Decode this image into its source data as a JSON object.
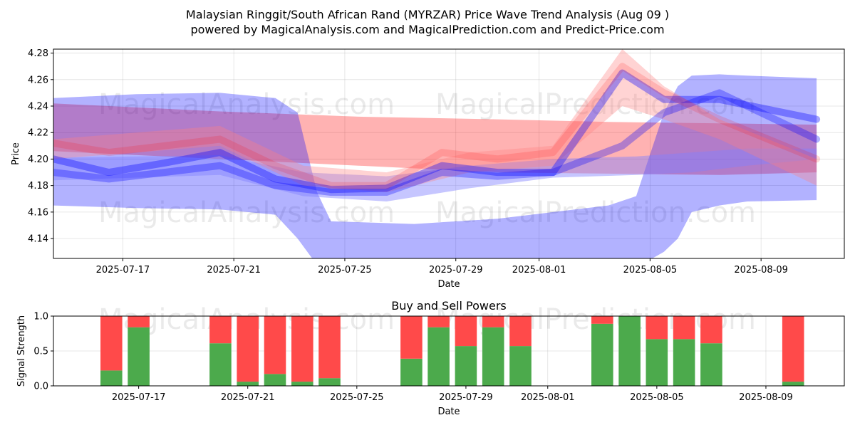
{
  "chart_data": [
    {
      "type": "area",
      "title_line1": "Malaysian Ringgit/South African Rand (MYRZAR) Price Wave Trend Analysis (Aug 09 )",
      "title_line2": "powered by MagicalAnalysis.com and MagicalPrediction.com and Predict-Price.com",
      "xlabel": "Date",
      "ylabel": "Price",
      "x_range": [
        "2025-07-14T12:00",
        "2025-08-12T00:00"
      ],
      "ylim": [
        4.125,
        4.283
      ],
      "y_ticks": [
        4.14,
        4.16,
        4.18,
        4.2,
        4.22,
        4.24,
        4.26,
        4.28
      ],
      "y_tick_labels": [
        "4.14",
        "4.16",
        "4.18",
        "4.20",
        "4.22",
        "4.24",
        "4.26",
        "4.28"
      ],
      "x_ticks": [
        "2025-07-17",
        "2025-07-21",
        "2025-07-25",
        "2025-07-29",
        "2025-08-01",
        "2025-08-05",
        "2025-08-09"
      ],
      "grid": true,
      "watermark": [
        "MagicalAnalysis.com",
        "MagicalPrediction.com"
      ],
      "bands": [
        {
          "color": "#ff0000",
          "opacity": 0.3,
          "days": [
            0,
            6,
            11,
            16,
            20,
            24,
            27.5
          ],
          "lower": [
            4.206,
            4.2,
            4.195,
            4.19,
            4.189,
            4.188,
            4.19
          ],
          "upper": [
            4.242,
            4.236,
            4.232,
            4.23,
            4.228,
            4.227,
            4.226
          ]
        },
        {
          "color": "#0000ff",
          "opacity": 0.3,
          "days": [
            0,
            3,
            6,
            8,
            8.8,
            9.5,
            10,
            13,
            16,
            18,
            20,
            21,
            22,
            22.5,
            23,
            24,
            25,
            27.5
          ],
          "lower": [
            4.165,
            4.163,
            4.162,
            4.158,
            4.14,
            4.12,
            4.105,
            4.1,
            4.1,
            4.105,
            4.11,
            4.118,
            4.13,
            4.14,
            4.16,
            4.165,
            4.168,
            4.169
          ],
          "upper": [
            4.246,
            4.249,
            4.25,
            4.246,
            4.235,
            4.175,
            4.153,
            4.151,
            4.155,
            4.16,
            4.165,
            4.172,
            4.235,
            4.255,
            4.263,
            4.264,
            4.263,
            4.261
          ]
        },
        {
          "color": "#8080ff",
          "opacity": 0.45,
          "days": [
            0,
            6,
            9,
            12,
            15,
            18,
            21,
            23,
            25,
            27.5
          ],
          "lower": [
            4.184,
            4.188,
            4.172,
            4.168,
            4.178,
            4.186,
            4.188,
            4.19,
            4.195,
            4.2
          ],
          "upper": [
            4.201,
            4.203,
            4.19,
            4.187,
            4.195,
            4.2,
            4.202,
            4.205,
            4.208,
            4.208
          ]
        },
        {
          "color": "#ff8080",
          "opacity": 0.35,
          "days": [
            0,
            6,
            9,
            12,
            15,
            18,
            20.5,
            22,
            24,
            27.5
          ],
          "lower": [
            4.2,
            4.21,
            4.18,
            4.175,
            4.19,
            4.195,
            4.24,
            4.23,
            4.215,
            4.18
          ],
          "upper": [
            4.215,
            4.225,
            4.195,
            4.19,
            4.205,
            4.21,
            4.283,
            4.255,
            4.23,
            4.2
          ]
        }
      ],
      "lines": [
        {
          "color": "#0000ff",
          "opacity": 0.35,
          "width": 10,
          "days": [
            0,
            2,
            4,
            6,
            8,
            10,
            12,
            14,
            16,
            18,
            20.5,
            22,
            24,
            27.5
          ],
          "values": [
            4.2,
            4.19,
            4.197,
            4.205,
            4.185,
            4.177,
            4.178,
            4.195,
            4.19,
            4.19,
            4.265,
            4.245,
            4.245,
            4.23
          ]
        },
        {
          "color": "#0000ff",
          "opacity": 0.3,
          "width": 10,
          "days": [
            0,
            2,
            4,
            6,
            8,
            10,
            12,
            14,
            16,
            18,
            20.5,
            22,
            24,
            27.5
          ],
          "values": [
            4.19,
            4.185,
            4.19,
            4.195,
            4.18,
            4.175,
            4.175,
            4.19,
            4.187,
            4.19,
            4.21,
            4.235,
            4.25,
            4.215
          ]
        },
        {
          "color": "#ff0000",
          "opacity": 0.15,
          "width": 10,
          "days": [
            0,
            2,
            4,
            6,
            8,
            10,
            12,
            14,
            16,
            18,
            20.5,
            22,
            24,
            27.5
          ],
          "values": [
            4.212,
            4.205,
            4.21,
            4.215,
            4.195,
            4.18,
            4.18,
            4.205,
            4.2,
            4.205,
            4.27,
            4.25,
            4.23,
            4.2
          ]
        }
      ]
    },
    {
      "type": "bar",
      "title": "Buy and Sell Powers",
      "xlabel": "Date",
      "ylabel": "Signal Strength",
      "ylim": [
        0,
        1.0
      ],
      "y_ticks": [
        0,
        0.5,
        1.0
      ],
      "y_tick_labels": [
        "0.0",
        "0.5",
        "1.0"
      ],
      "x_ticks": [
        "2025-07-17",
        "2025-07-21",
        "2025-07-25",
        "2025-07-29",
        "2025-08-01",
        "2025-08-05",
        "2025-08-09"
      ],
      "buy_color": "#4caa4c",
      "sell_color": "#ff4a4a",
      "series": [
        {
          "name": "Buy",
          "values": [
            0.22,
            0.84,
            0.61,
            0.06,
            0.17,
            0.06,
            0.11,
            0.39,
            0.84,
            0.57,
            0.84,
            0.57,
            0.89,
            1.0,
            0.67,
            0.67,
            0.61,
            0.06
          ]
        },
        {
          "name": "Sell",
          "values": [
            0.78,
            0.16,
            0.39,
            0.94,
            0.83,
            0.94,
            0.89,
            0.61,
            0.16,
            0.43,
            0.16,
            0.43,
            0.11,
            0.0,
            0.33,
            0.33,
            0.39,
            0.94
          ]
        }
      ],
      "categories": [
        "2025-07-16",
        "2025-07-17",
        "2025-07-20",
        "2025-07-21",
        "2025-07-22",
        "2025-07-23",
        "2025-07-24",
        "2025-07-27",
        "2025-07-28",
        "2025-07-29",
        "2025-07-30",
        "2025-07-31",
        "2025-08-03",
        "2025-08-04",
        "2025-08-05",
        "2025-08-06",
        "2025-08-07",
        "2025-08-10"
      ]
    }
  ]
}
